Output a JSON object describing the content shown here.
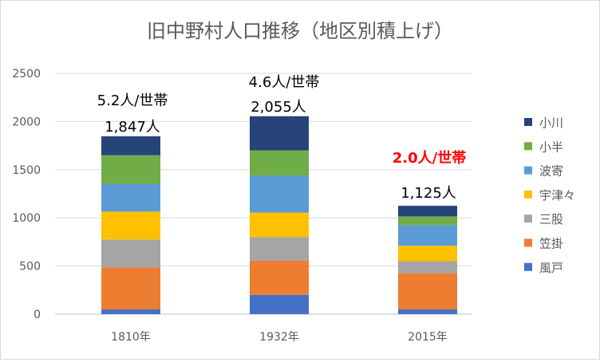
{
  "chart_data": {
    "type": "bar",
    "stacked": true,
    "title": "旧中野村人口推移（地区別積上げ）",
    "xlabel": "",
    "ylabel": "",
    "ylim": [
      0,
      2500
    ],
    "yticks": [
      "0",
      "500",
      "1000",
      "1500",
      "2000",
      "2500"
    ],
    "grid": true,
    "legend_position": "right",
    "categories": [
      "1810年",
      "1932年",
      "2015年"
    ],
    "series": [
      {
        "name": "風戸",
        "color": "#4472c4",
        "values": [
          50,
          200,
          50
        ]
      },
      {
        "name": "笠掛",
        "color": "#ed7d31",
        "values": [
          435,
          355,
          375
        ]
      },
      {
        "name": "三股",
        "color": "#a5a5a5",
        "values": [
          290,
          245,
          125
        ]
      },
      {
        "name": "宇津々",
        "color": "#ffc000",
        "values": [
          290,
          255,
          160
        ]
      },
      {
        "name": "波寄",
        "color": "#5b9bd5",
        "values": [
          285,
          385,
          215
        ]
      },
      {
        "name": "小半",
        "color": "#70ad47",
        "values": [
          300,
          260,
          90
        ]
      },
      {
        "name": "小川",
        "color": "#264478",
        "values": [
          197,
          355,
          110
        ]
      }
    ],
    "totals": [
      "1,847人",
      "2,055人",
      "1,125人"
    ],
    "annotations": [
      {
        "text": "5.2人/世帯",
        "category": 0,
        "color": "#000000",
        "bold": false
      },
      {
        "text": "4.6人/世帯",
        "category": 1,
        "color": "#000000",
        "bold": false
      },
      {
        "text": "2.0人/世帯",
        "category": 2,
        "color": "#ff0000",
        "bold": true
      }
    ]
  }
}
